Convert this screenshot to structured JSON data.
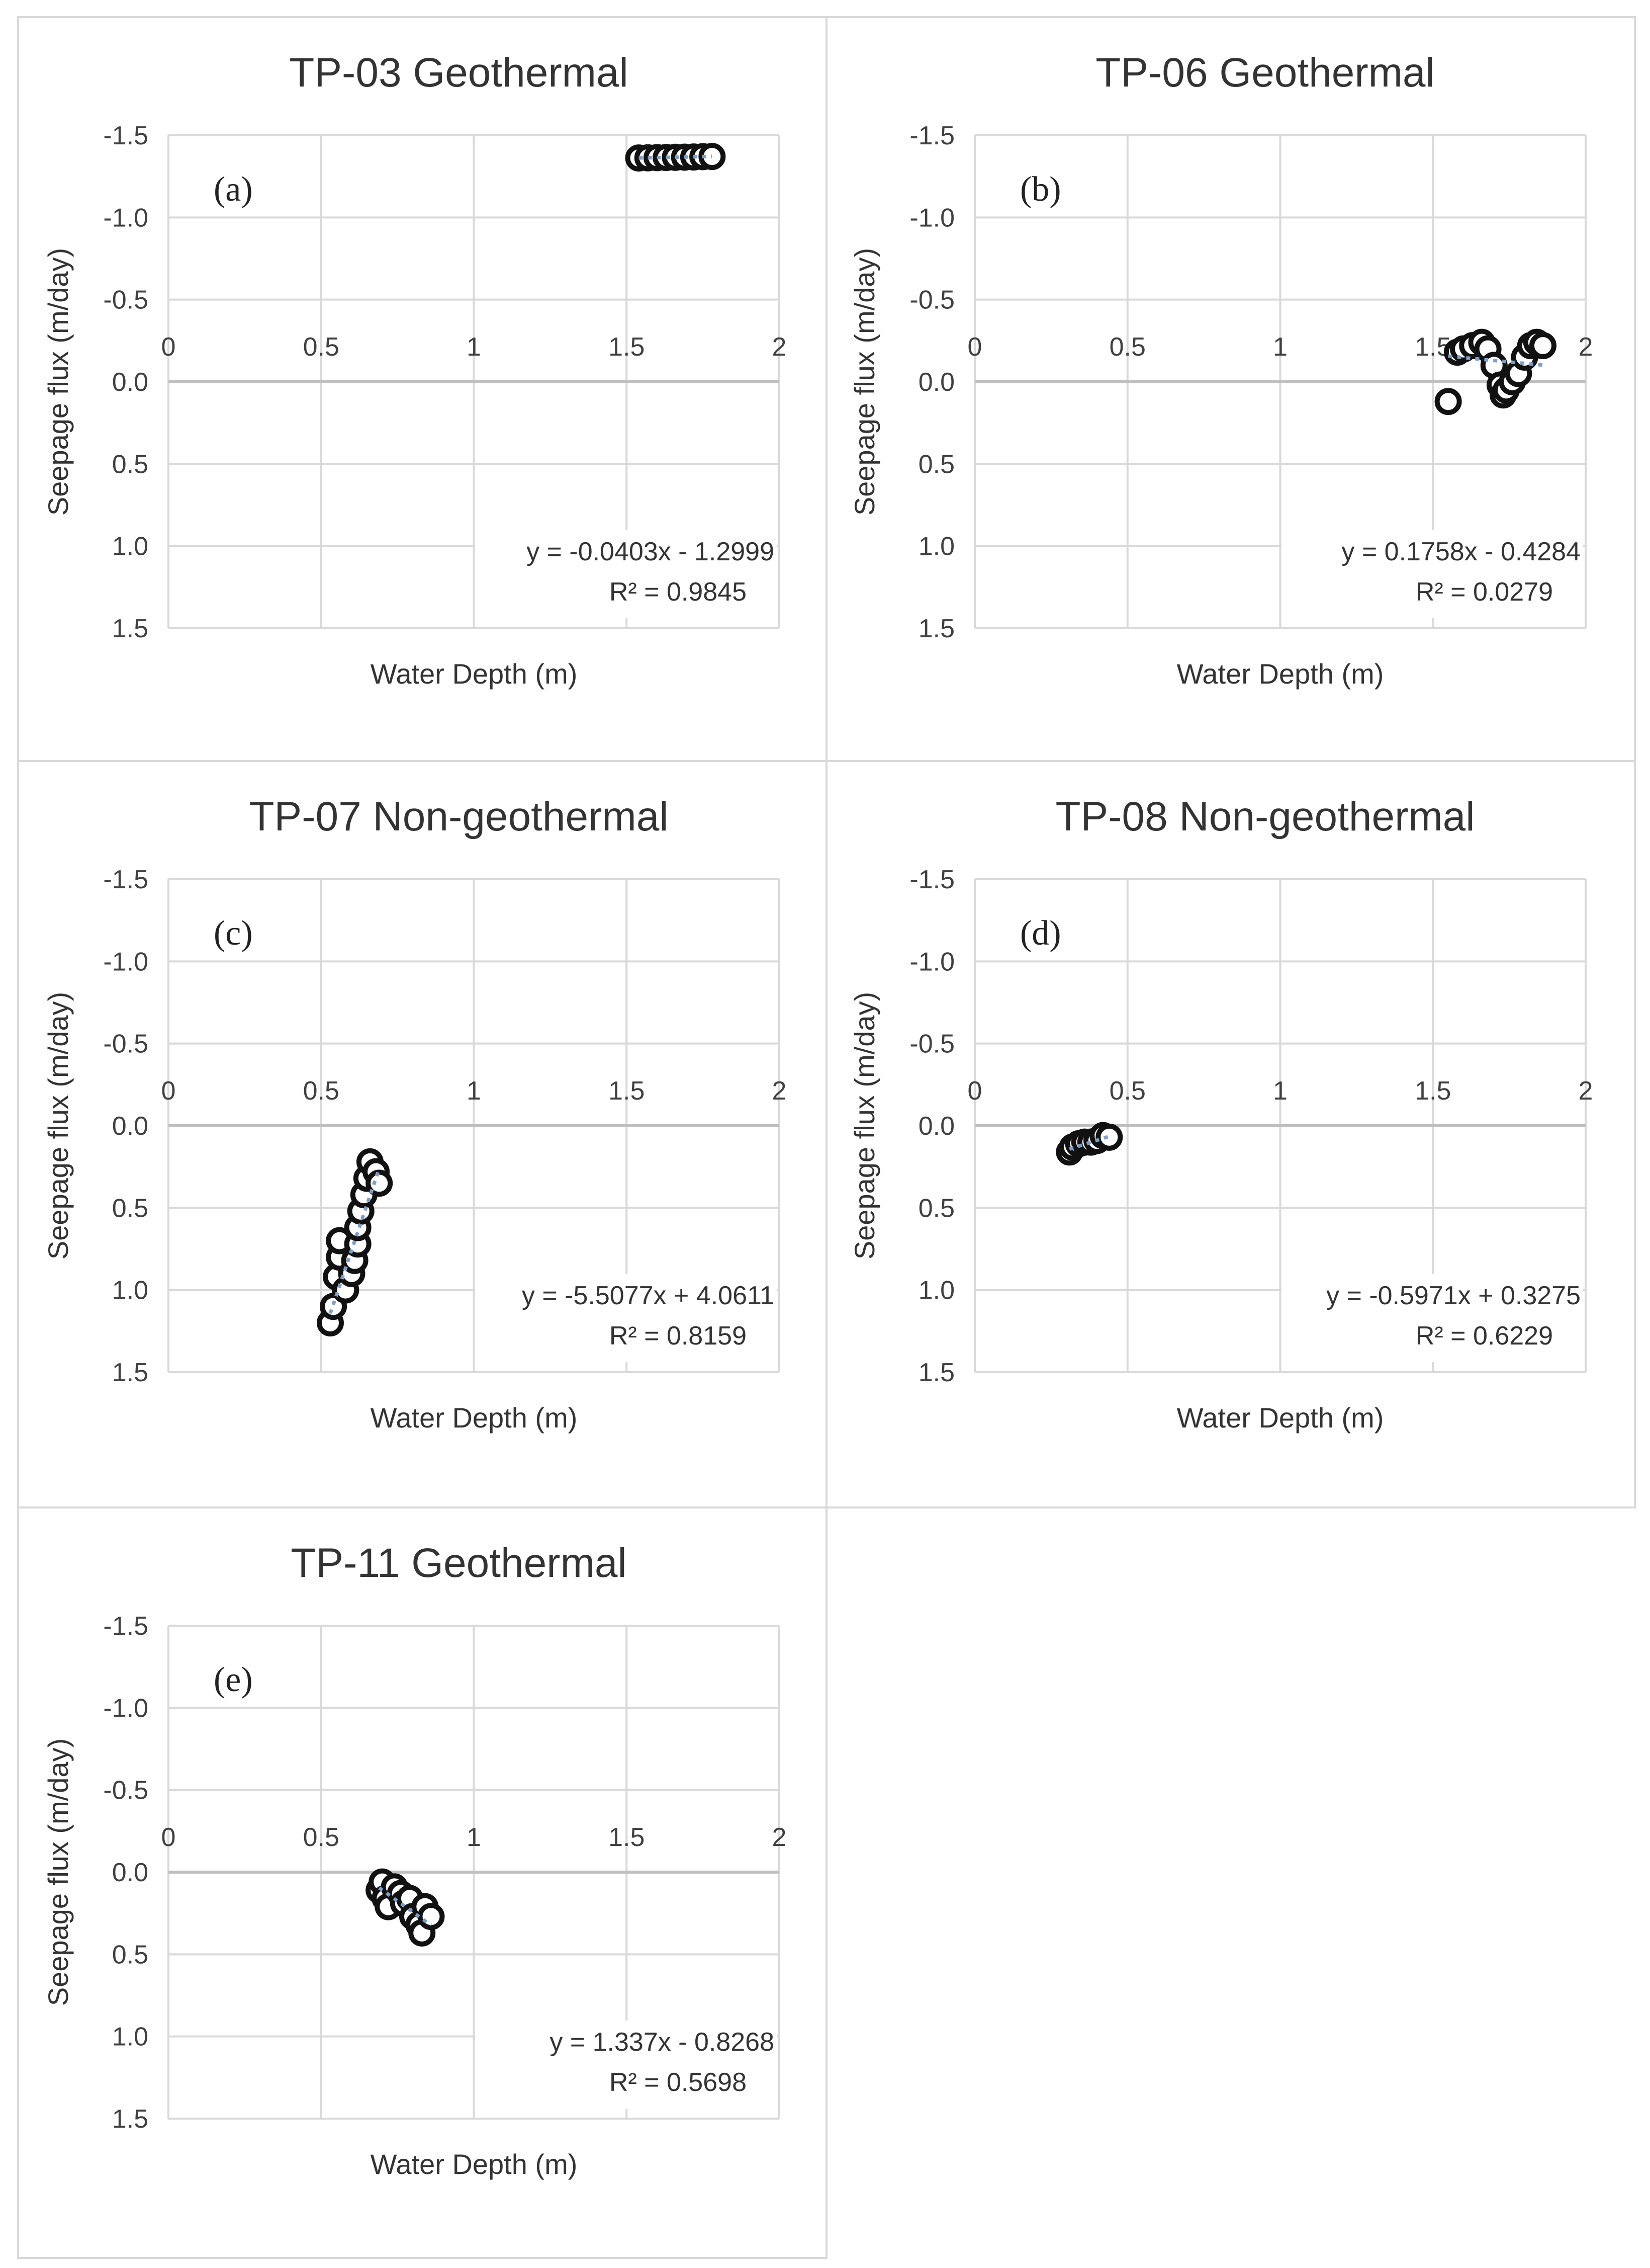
{
  "chart_data": [
    {
      "type": "scatter",
      "panel": "(a)",
      "title": "TP-03 Geothermal",
      "xlabel": "Water Depth (m)",
      "ylabel": "Seepage flux (m/day)",
      "xlim": [
        0,
        2
      ],
      "ylim": [
        -1.5,
        1.5
      ],
      "y_axis_inverted": true,
      "x_ticks": [
        "0",
        "0.5",
        "1",
        "1.5",
        "2"
      ],
      "y_ticks": [
        "-1.5",
        "-1.0",
        "-0.5",
        "0.0",
        "0.5",
        "1.0",
        "1.5"
      ],
      "trendline": {
        "type": "linear",
        "slope": -0.0403,
        "intercept": -1.2999
      },
      "equation_label": "y = -0.0403x - 1.2999",
      "r2_label": "R² = 0.9845",
      "points": [
        [
          1.54,
          -1.362
        ],
        [
          1.57,
          -1.363
        ],
        [
          1.6,
          -1.364
        ],
        [
          1.63,
          -1.365
        ],
        [
          1.66,
          -1.366
        ],
        [
          1.69,
          -1.367
        ],
        [
          1.72,
          -1.368
        ],
        [
          1.75,
          -1.37
        ],
        [
          1.78,
          -1.371
        ]
      ]
    },
    {
      "type": "scatter",
      "panel": "(b)",
      "title": "TP-06 Geothermal",
      "xlabel": "Water Depth (m)",
      "ylabel": "Seepage flux (m/day)",
      "xlim": [
        0,
        2
      ],
      "ylim": [
        -1.5,
        1.5
      ],
      "y_axis_inverted": true,
      "x_ticks": [
        "0",
        "0.5",
        "1",
        "1.5",
        "2"
      ],
      "y_ticks": [
        "-1.5",
        "-1.0",
        "-0.5",
        "0.0",
        "0.5",
        "1.0",
        "1.5"
      ],
      "trendline": {
        "type": "linear",
        "slope": 0.1758,
        "intercept": -0.4284
      },
      "equation_label": "y = 0.1758x - 0.4284",
      "r2_label": "R² = 0.0279",
      "points": [
        [
          1.55,
          0.12
        ],
        [
          1.58,
          -0.18
        ],
        [
          1.6,
          -0.2
        ],
        [
          1.63,
          -0.22
        ],
        [
          1.66,
          -0.24
        ],
        [
          1.68,
          -0.2
        ],
        [
          1.7,
          -0.1
        ],
        [
          1.72,
          0.02
        ],
        [
          1.73,
          0.08
        ],
        [
          1.74,
          0.05
        ],
        [
          1.76,
          0.0
        ],
        [
          1.78,
          -0.05
        ],
        [
          1.8,
          -0.15
        ],
        [
          1.82,
          -0.22
        ],
        [
          1.84,
          -0.24
        ],
        [
          1.86,
          -0.22
        ]
      ]
    },
    {
      "type": "scatter",
      "panel": "(c)",
      "title": "TP-07 Non-geothermal",
      "xlabel": "Water Depth (m)",
      "ylabel": "Seepage flux (m/day)",
      "xlim": [
        0,
        2
      ],
      "ylim": [
        -1.5,
        1.5
      ],
      "y_axis_inverted": true,
      "x_ticks": [
        "0",
        "0.5",
        "1",
        "1.5",
        "2"
      ],
      "y_ticks": [
        "-1.5",
        "-1.0",
        "-0.5",
        "0.0",
        "0.5",
        "1.0",
        "1.5"
      ],
      "trendline": {
        "type": "linear",
        "slope": -5.5077,
        "intercept": 4.0611
      },
      "equation_label": "y = -5.5077x + 4.0611",
      "r2_label": "R² = 0.8159",
      "points": [
        [
          0.53,
          1.2
        ],
        [
          0.54,
          1.1
        ],
        [
          0.55,
          0.92
        ],
        [
          0.56,
          0.8
        ],
        [
          0.56,
          0.7
        ],
        [
          0.58,
          1.0
        ],
        [
          0.6,
          0.9
        ],
        [
          0.61,
          0.82
        ],
        [
          0.62,
          0.72
        ],
        [
          0.62,
          0.62
        ],
        [
          0.63,
          0.52
        ],
        [
          0.64,
          0.42
        ],
        [
          0.65,
          0.32
        ],
        [
          0.66,
          0.22
        ],
        [
          0.68,
          0.28
        ],
        [
          0.69,
          0.35
        ]
      ]
    },
    {
      "type": "scatter",
      "panel": "(d)",
      "title": "TP-08 Non-geothermal",
      "xlabel": "Water Depth (m)",
      "ylabel": "Seepage flux (m/day)",
      "xlim": [
        0,
        2
      ],
      "ylim": [
        -1.5,
        1.5
      ],
      "y_axis_inverted": true,
      "x_ticks": [
        "0",
        "0.5",
        "1",
        "1.5",
        "2"
      ],
      "y_ticks": [
        "-1.5",
        "-1.0",
        "-0.5",
        "0.0",
        "0.5",
        "1.0",
        "1.5"
      ],
      "trendline": {
        "type": "linear",
        "slope": -0.5971,
        "intercept": 0.3275
      },
      "equation_label": "y = -0.5971x + 0.3275",
      "r2_label": "R² = 0.6229",
      "points": [
        [
          0.31,
          0.16
        ],
        [
          0.32,
          0.13
        ],
        [
          0.34,
          0.11
        ],
        [
          0.36,
          0.1
        ],
        [
          0.38,
          0.1
        ],
        [
          0.4,
          0.09
        ],
        [
          0.42,
          0.06
        ],
        [
          0.44,
          0.07
        ]
      ]
    },
    {
      "type": "scatter",
      "panel": "(e)",
      "title": "TP-11 Geothermal",
      "xlabel": "Water Depth (m)",
      "ylabel": "Seepage flux (m/day)",
      "xlim": [
        0,
        2
      ],
      "ylim": [
        -1.5,
        1.5
      ],
      "y_axis_inverted": true,
      "x_ticks": [
        "0",
        "0.5",
        "1",
        "1.5",
        "2"
      ],
      "y_ticks": [
        "-1.5",
        "-1.0",
        "-0.5",
        "0.0",
        "0.5",
        "1.0",
        "1.5"
      ],
      "trendline": {
        "type": "linear",
        "slope": 1.337,
        "intercept": -0.8268
      },
      "equation_label": "y = 1.337x - 0.8268",
      "r2_label": "R² = 0.5698",
      "points": [
        [
          0.69,
          0.11
        ],
        [
          0.7,
          0.06
        ],
        [
          0.71,
          0.16
        ],
        [
          0.72,
          0.21
        ],
        [
          0.74,
          0.09
        ],
        [
          0.76,
          0.13
        ],
        [
          0.77,
          0.19
        ],
        [
          0.79,
          0.16
        ],
        [
          0.8,
          0.27
        ],
        [
          0.82,
          0.32
        ],
        [
          0.83,
          0.37
        ],
        [
          0.84,
          0.21
        ],
        [
          0.86,
          0.27
        ]
      ]
    }
  ]
}
